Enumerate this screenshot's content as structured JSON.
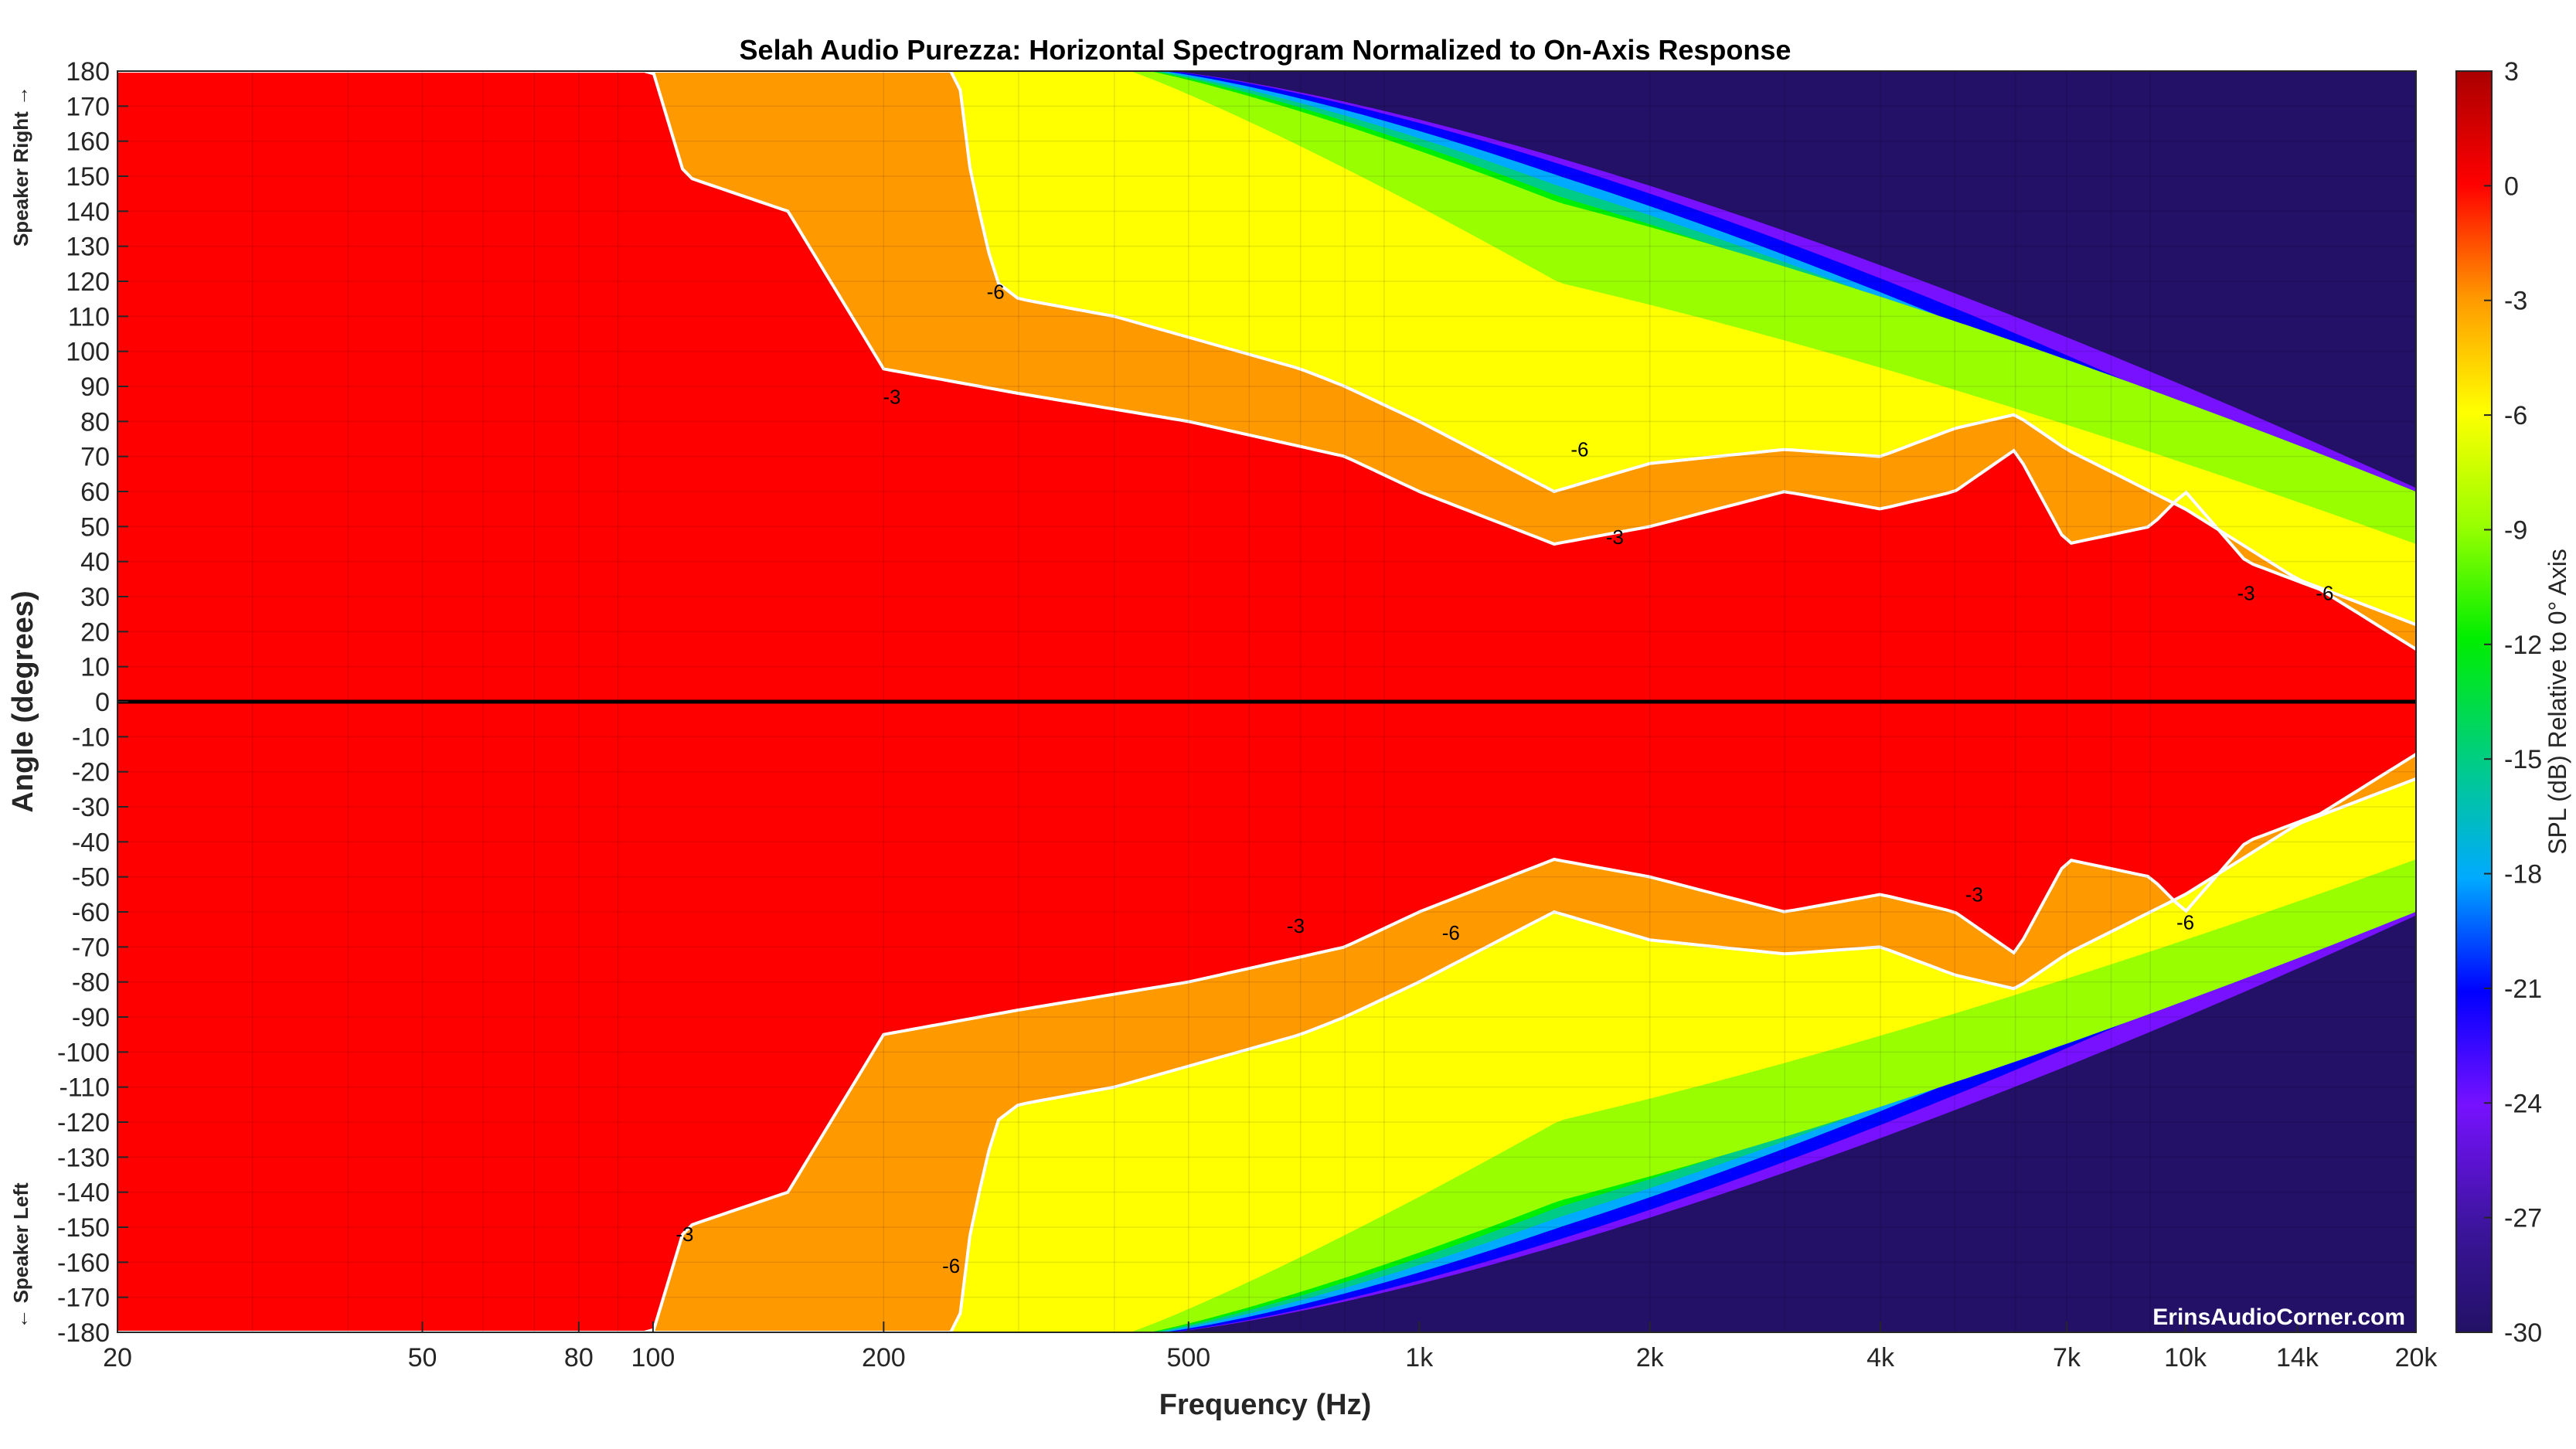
{
  "chart_data": {
    "type": "heatmap",
    "title": "Selah Audio Purezza: Horizontal Spectrogram Normalized to On-Axis Response",
    "xlabel": "Frequency (Hz)",
    "ylabel": "Angle (degrees)",
    "xscale": "log",
    "xlim": [
      20,
      20000
    ],
    "ylim": [
      -180,
      180
    ],
    "x_ticks": [
      20,
      50,
      80,
      100,
      200,
      500,
      1000,
      2000,
      4000,
      7000,
      10000,
      14000,
      20000
    ],
    "x_tick_labels": [
      "20",
      "50",
      "80",
      "100",
      "200",
      "500",
      "1k",
      "2k",
      "4k",
      "7k",
      "10k",
      "14k",
      "20k"
    ],
    "y_ticks": [
      180,
      170,
      160,
      150,
      140,
      130,
      120,
      110,
      100,
      90,
      80,
      70,
      60,
      50,
      40,
      30,
      20,
      10,
      0,
      -10,
      -20,
      -30,
      -40,
      -50,
      -60,
      -70,
      -80,
      -90,
      -100,
      -110,
      -120,
      -130,
      -140,
      -150,
      -160,
      -170,
      -180
    ],
    "y_tick_labels": [
      "180",
      "170",
      "160",
      "150",
      "140",
      "130",
      "120",
      "110",
      "100",
      "90",
      "80",
      "70",
      "60",
      "50",
      "40",
      "30",
      "20",
      "10",
      "0",
      "-10",
      "-20",
      "-30",
      "-40",
      "-50",
      "-60",
      "-70",
      "-80",
      "-90",
      "-100",
      "-110",
      "-120",
      "-130",
      "-140",
      "-150",
      "-160",
      "-170",
      "-180"
    ],
    "side_labels": {
      "top": "Speaker Right →",
      "bottom": "← Speaker Left"
    },
    "colorbar": {
      "label": "SPL (dB) Relative to 0° Axis",
      "range": [
        -30,
        3
      ],
      "ticks": [
        3,
        0,
        -3,
        -6,
        -9,
        -12,
        -15,
        -18,
        -21,
        -24,
        -27,
        -30
      ],
      "tick_labels": [
        "3",
        "0",
        "-3",
        "-6",
        "-9",
        "-12",
        "-15",
        "-18",
        "-21",
        "-24",
        "-27",
        "-30"
      ]
    },
    "levels": [
      {
        "min": -3,
        "color": "#ff0000"
      },
      {
        "min": -6,
        "color": "#ff9900"
      },
      {
        "min": -9,
        "color": "#ffff00"
      },
      {
        "min": -12,
        "color": "#99ff00"
      },
      {
        "min": -15,
        "color": "#00ee00"
      },
      {
        "min": -18,
        "color": "#00cc88"
      },
      {
        "min": -21,
        "color": "#00aaff"
      },
      {
        "min": -24,
        "color": "#0000ff"
      },
      {
        "min": -27,
        "color": "#7711ff"
      },
      {
        "min": -30,
        "color": "#221166"
      }
    ],
    "contours": [
      {
        "level": -3,
        "note": "angle where response falls below -3 dB",
        "freq_hz": [
          20,
          100,
          110,
          150,
          200,
          300,
          500,
          800,
          1000,
          1500,
          2000,
          3000,
          4000,
          5000,
          6000,
          7000,
          9000,
          10000,
          12000,
          15000,
          20000
        ],
        "angle_deg": [
          180,
          180,
          150,
          140,
          95,
          88,
          80,
          70,
          60,
          45,
          50,
          60,
          55,
          60,
          72,
          45,
          50,
          60,
          40,
          32,
          15
        ]
      },
      {
        "level": -6,
        "note": "angle where response falls below -6 dB",
        "freq_hz": [
          20,
          250,
          260,
          280,
          300,
          400,
          700,
          800,
          1000,
          1500,
          2000,
          3000,
          4000,
          5000,
          6000,
          7000,
          10000,
          14000,
          20000
        ],
        "angle_deg": [
          180,
          180,
          150,
          120,
          115,
          110,
          95,
          90,
          80,
          60,
          68,
          72,
          70,
          78,
          82,
          72,
          55,
          35,
          22
        ]
      }
    ],
    "contour_labels": [
      {
        "text": "-6",
        "freq": 280,
        "angle": 117
      },
      {
        "text": "-3",
        "freq": 205,
        "angle": 87
      },
      {
        "text": "-6",
        "freq": 1620,
        "angle": 72
      },
      {
        "text": "-3",
        "freq": 1800,
        "angle": 47
      },
      {
        "text": "-3",
        "freq": 12000,
        "angle": 31
      },
      {
        "text": "-6",
        "freq": 15200,
        "angle": 31
      },
      {
        "text": "-3",
        "freq": 110,
        "angle": -152
      },
      {
        "text": "-6",
        "freq": 245,
        "angle": -161
      },
      {
        "text": "-3",
        "freq": 690,
        "angle": -64
      },
      {
        "text": "-6",
        "freq": 1100,
        "angle": -66
      },
      {
        "text": "-3",
        "freq": 5300,
        "angle": -55
      },
      {
        "text": "-6",
        "freq": 10000,
        "angle": -63
      }
    ],
    "reference_line": {
      "angle": 0,
      "color": "#000000"
    },
    "watermark": "ErinsAudioCorner.com"
  }
}
